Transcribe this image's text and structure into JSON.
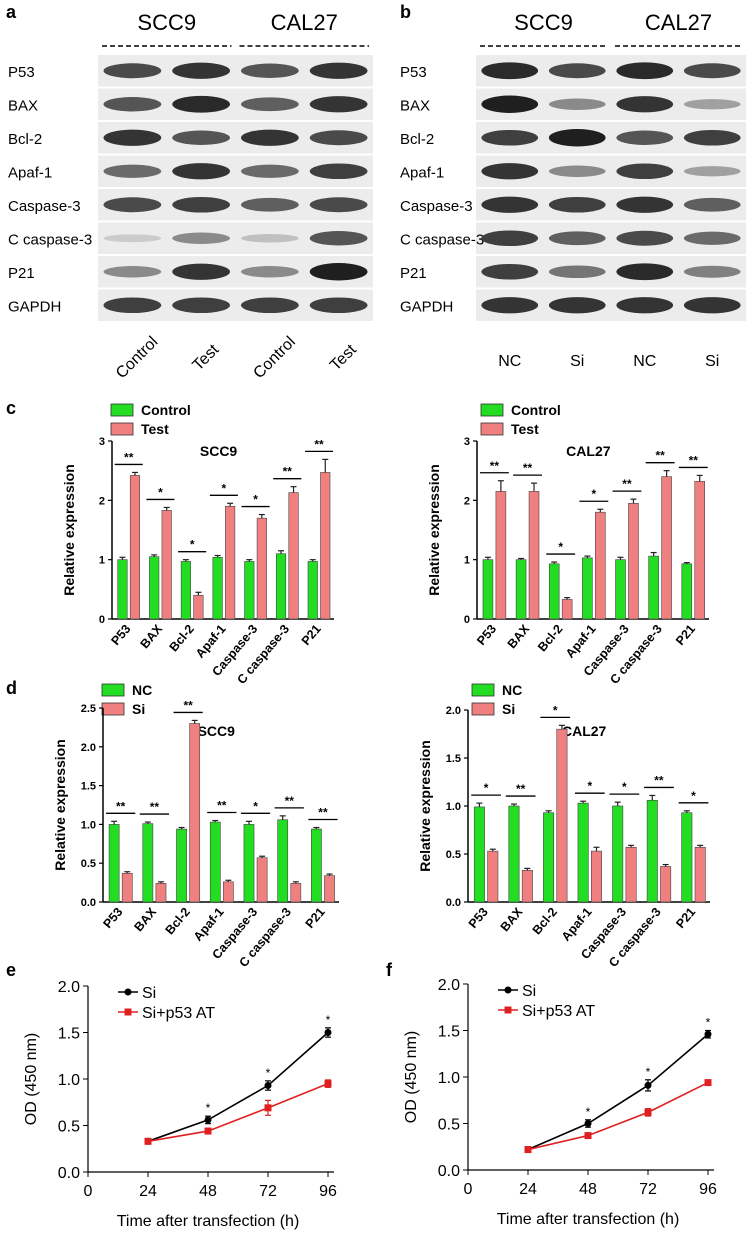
{
  "panel_letters": {
    "a": "a",
    "b": "b",
    "c": "c",
    "d": "d",
    "e": "e",
    "f": "f"
  },
  "blots": {
    "a": {
      "cells": [
        "SCC9",
        "CAL27"
      ],
      "rows": [
        "P53",
        "BAX",
        "Bcl-2",
        "Apaf-1",
        "Caspase-3",
        "C caspase-3",
        "P21",
        "GAPDH"
      ],
      "lanes": [
        "Control",
        "Test",
        "Control",
        "Test"
      ],
      "band_intensity": [
        [
          0.75,
          0.85,
          0.7,
          0.85
        ],
        [
          0.7,
          0.9,
          0.65,
          0.85
        ],
        [
          0.85,
          0.7,
          0.85,
          0.75
        ],
        [
          0.6,
          0.85,
          0.6,
          0.8
        ],
        [
          0.75,
          0.8,
          0.65,
          0.75
        ],
        [
          0.15,
          0.45,
          0.2,
          0.7
        ],
        [
          0.45,
          0.85,
          0.45,
          0.95
        ],
        [
          0.8,
          0.8,
          0.8,
          0.8
        ]
      ]
    },
    "b": {
      "cells": [
        "SCC9",
        "CAL27"
      ],
      "rows": [
        "P53",
        "BAX",
        "Bcl-2",
        "Apaf-1",
        "Caspase-3",
        "C caspase-3",
        "P21",
        "GAPDH"
      ],
      "lanes": [
        "NC",
        "Si",
        "NC",
        "Si"
      ],
      "band_intensity": [
        [
          0.9,
          0.75,
          0.9,
          0.75
        ],
        [
          0.95,
          0.45,
          0.85,
          0.35
        ],
        [
          0.8,
          0.95,
          0.7,
          0.8
        ],
        [
          0.85,
          0.45,
          0.8,
          0.35
        ],
        [
          0.85,
          0.8,
          0.85,
          0.65
        ],
        [
          0.8,
          0.65,
          0.75,
          0.6
        ],
        [
          0.8,
          0.55,
          0.9,
          0.5
        ],
        [
          0.85,
          0.85,
          0.85,
          0.85
        ]
      ]
    }
  },
  "chart_data": [
    {
      "panel": "c",
      "type": "bar",
      "title": "SCC9",
      "ylabel": "Relative expression",
      "ylim": [
        0,
        3
      ],
      "yticks": [
        "0",
        "1",
        "2",
        "3"
      ],
      "categories": [
        "P53",
        "BAX",
        "Bcl-2",
        "Apaf-1",
        "Caspase-3",
        "C caspase-3",
        "P21"
      ],
      "series": [
        {
          "name": "Control",
          "color": "#22dd22",
          "values": [
            1.0,
            1.05,
            0.97,
            1.04,
            0.97,
            1.1,
            0.97
          ],
          "errors": [
            0.04,
            0.03,
            0.03,
            0.03,
            0.03,
            0.05,
            0.03
          ]
        },
        {
          "name": "Test",
          "color": "#f08080",
          "values": [
            2.42,
            1.83,
            0.4,
            1.9,
            1.7,
            2.13,
            2.47
          ],
          "errors": [
            0.05,
            0.05,
            0.05,
            0.05,
            0.06,
            0.1,
            0.22
          ]
        }
      ],
      "significance": [
        "**",
        "*",
        "*",
        "*",
        "*",
        "**",
        "**"
      ]
    },
    {
      "panel": "c",
      "type": "bar",
      "title": "CAL27",
      "ylabel": "Relative expression",
      "ylim": [
        0,
        3
      ],
      "yticks": [
        "0",
        "1",
        "2",
        "3"
      ],
      "categories": [
        "P53",
        "BAX",
        "Bcl-2",
        "Apaf-1",
        "Caspase-3",
        "C caspase-3",
        "P21"
      ],
      "series": [
        {
          "name": "Control",
          "color": "#22dd22",
          "values": [
            1.0,
            1.0,
            0.93,
            1.03,
            1.0,
            1.06,
            0.93
          ],
          "errors": [
            0.04,
            0.02,
            0.03,
            0.03,
            0.04,
            0.06,
            0.02
          ]
        },
        {
          "name": "Test",
          "color": "#f08080",
          "values": [
            2.15,
            2.15,
            0.33,
            1.8,
            1.95,
            2.4,
            2.32
          ],
          "errors": [
            0.18,
            0.14,
            0.03,
            0.05,
            0.07,
            0.1,
            0.1
          ]
        }
      ],
      "significance": [
        "**",
        "**",
        "*",
        "*",
        "**",
        "**",
        "**"
      ]
    },
    {
      "panel": "d",
      "type": "bar",
      "title": "SCC9",
      "ylabel": "Relative expression",
      "ylim": [
        0,
        2.5
      ],
      "yticks": [
        "0.0",
        "0.5",
        "1.0",
        "1.5",
        "2.0",
        "2.5"
      ],
      "categories": [
        "P53",
        "BAX",
        "Bcl-2",
        "Apaf-1",
        "Caspase-3",
        "C caspase-3",
        "P21"
      ],
      "series": [
        {
          "name": "NC",
          "color": "#22dd22",
          "values": [
            1.0,
            1.01,
            0.94,
            1.03,
            1.0,
            1.06,
            0.94
          ],
          "errors": [
            0.04,
            0.02,
            0.02,
            0.02,
            0.04,
            0.05,
            0.02
          ]
        },
        {
          "name": "Si",
          "color": "#f08080",
          "values": [
            0.37,
            0.24,
            2.3,
            0.26,
            0.57,
            0.24,
            0.34
          ],
          "errors": [
            0.02,
            0.02,
            0.04,
            0.02,
            0.02,
            0.02,
            0.02
          ]
        }
      ],
      "significance": [
        "**",
        "**",
        "**",
        "**",
        "*",
        "**",
        "**"
      ]
    },
    {
      "panel": "d",
      "type": "bar",
      "title": "CAL27",
      "ylabel": "Relative expression",
      "ylim": [
        0,
        2
      ],
      "yticks": [
        "0.0",
        "0.5",
        "1.0",
        "1.5",
        "2.0"
      ],
      "categories": [
        "P53",
        "BAX",
        "Bcl-2",
        "Apaf-1",
        "Caspase-3",
        "C caspase-3",
        "P21"
      ],
      "series": [
        {
          "name": "NC",
          "color": "#22dd22",
          "values": [
            0.99,
            1.0,
            0.93,
            1.03,
            1.0,
            1.06,
            0.93
          ],
          "errors": [
            0.04,
            0.02,
            0.02,
            0.02,
            0.04,
            0.05,
            0.02
          ]
        },
        {
          "name": "Si",
          "color": "#f08080",
          "values": [
            0.53,
            0.33,
            1.8,
            0.53,
            0.57,
            0.37,
            0.57
          ],
          "errors": [
            0.02,
            0.02,
            0.04,
            0.04,
            0.02,
            0.02,
            0.02
          ]
        }
      ],
      "significance": [
        "*",
        "**",
        "*",
        "*",
        "*",
        "**",
        "*"
      ]
    },
    {
      "panel": "e",
      "type": "line",
      "xlabel": "Time after transfection (h)",
      "ylabel": "OD (450 nm)",
      "xticks": [
        0,
        24,
        48,
        72,
        96
      ],
      "xlim": [
        0,
        96
      ],
      "ylim": [
        0,
        2
      ],
      "yticks": [
        "0.0",
        "0.5",
        "1.0",
        "1.5",
        "2.0"
      ],
      "series": [
        {
          "name": "Si",
          "color": "#000000",
          "marker": "circle",
          "x": [
            24,
            48,
            72,
            96
          ],
          "y": [
            0.33,
            0.56,
            0.93,
            1.5
          ],
          "errors": [
            0.02,
            0.04,
            0.05,
            0.05
          ],
          "stars": [
            "",
            "*",
            "*",
            "*"
          ]
        },
        {
          "name": "Si+p53 AT",
          "color": "#e02020",
          "marker": "square",
          "x": [
            24,
            48,
            72,
            96
          ],
          "y": [
            0.33,
            0.44,
            0.69,
            0.95
          ],
          "errors": [
            0.02,
            0.03,
            0.08,
            0.04
          ],
          "stars": [
            "",
            "",
            "",
            ""
          ]
        }
      ]
    },
    {
      "panel": "f",
      "type": "line",
      "xlabel": "Time after transfection (h)",
      "ylabel": "OD (450 nm)",
      "xticks": [
        0,
        24,
        48,
        72,
        96
      ],
      "xlim": [
        0,
        96
      ],
      "ylim": [
        0,
        2
      ],
      "yticks": [
        "0.0",
        "0.5",
        "1.0",
        "1.5",
        "2.0"
      ],
      "series": [
        {
          "name": "Si",
          "color": "#000000",
          "marker": "circle",
          "x": [
            24,
            48,
            72,
            96
          ],
          "y": [
            0.22,
            0.5,
            0.91,
            1.46
          ],
          "errors": [
            0.01,
            0.04,
            0.06,
            0.04
          ],
          "stars": [
            "",
            "*",
            "*",
            "*"
          ]
        },
        {
          "name": "Si+p53 AT",
          "color": "#e02020",
          "marker": "square",
          "x": [
            24,
            48,
            72,
            96
          ],
          "y": [
            0.22,
            0.37,
            0.62,
            0.94
          ],
          "errors": [
            0.01,
            0.02,
            0.04,
            0.02
          ],
          "stars": [
            "",
            "",
            "",
            ""
          ]
        }
      ]
    }
  ]
}
